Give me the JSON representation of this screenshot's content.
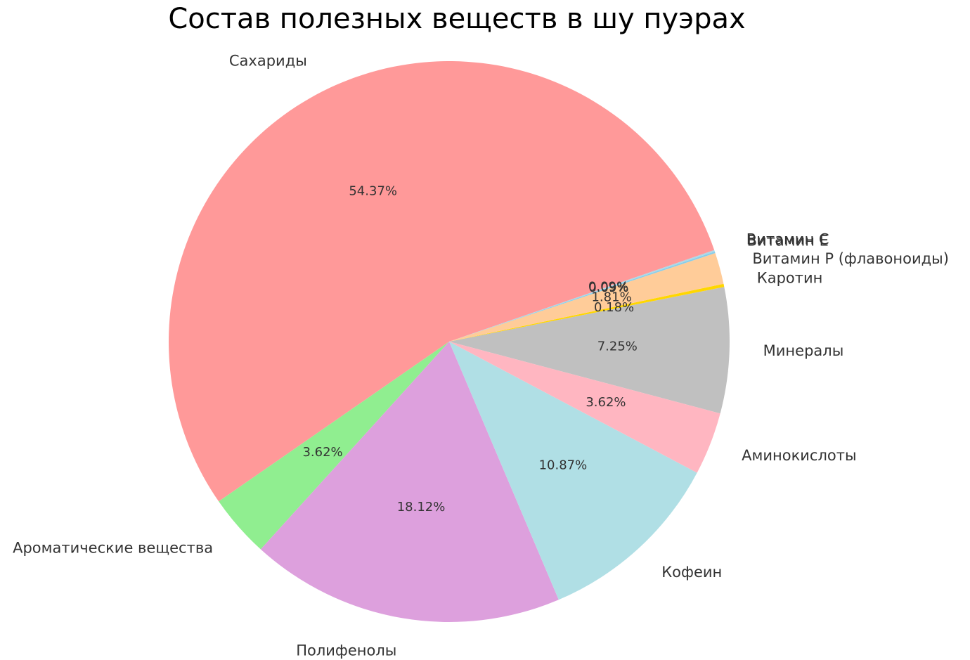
{
  "chart_data": {
    "type": "pie",
    "title": "Состав полезных веществ в шу пуэрах",
    "start_angle_deg": -14.85,
    "direction": "clockwise",
    "slices": [
      {
        "label": "Минералы",
        "value": 7.25,
        "pct_label": "7.25%",
        "color": "#c0c0c0"
      },
      {
        "label": "Каротин",
        "value": 0.18,
        "pct_label": "0.18%",
        "color": "#ffd700"
      },
      {
        "label": "Витамин Р (флавоноиды)",
        "value": 1.81,
        "pct_label": "1.81%",
        "color": "#ffcc99"
      },
      {
        "label": "Витамин Е",
        "value": 0.09,
        "pct_label": "0.09%",
        "color": "#87ceeb"
      },
      {
        "label": "Витамин С",
        "value": 0.09,
        "pct_label": "0.09%",
        "color": "#add8e6"
      },
      {
        "label": "Сахариды",
        "value": 54.37,
        "pct_label": "54.37%",
        "color": "#ff9999"
      },
      {
        "label": "Ароматические вещества",
        "value": 3.62,
        "pct_label": "3.62%",
        "color": "#90ee90"
      },
      {
        "label": "Полифенолы",
        "value": 18.12,
        "pct_label": "18.12%",
        "color": "#dda0dd"
      },
      {
        "label": "Кофеин",
        "value": 10.87,
        "pct_label": "10.87%",
        "color": "#b0dfe5"
      },
      {
        "label": "Аминокислоты",
        "value": 3.62,
        "pct_label": "3.62%",
        "color": "#ffb6c1"
      }
    ]
  }
}
